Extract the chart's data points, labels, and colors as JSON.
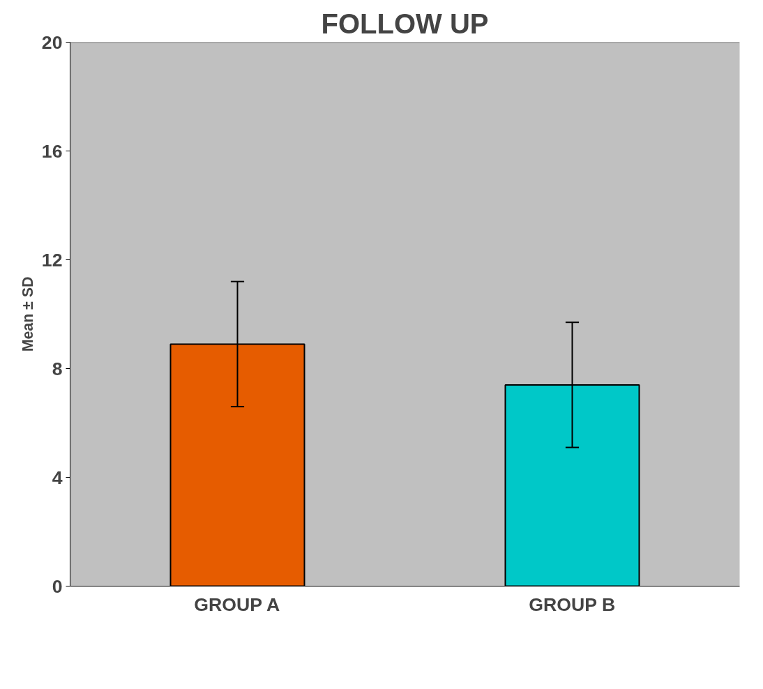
{
  "chart_data": {
    "type": "bar",
    "title": "FOLLOW UP",
    "ylabel": "Mean ± SD",
    "categories": [
      "GROUP A",
      "GROUP B"
    ],
    "values": [
      8.9,
      7.4
    ],
    "errors": [
      2.3,
      2.3
    ],
    "colors": [
      "#e65c00",
      "#00c8c8"
    ],
    "ylim": [
      0,
      20
    ],
    "yticks": [
      0,
      4,
      8,
      12,
      16,
      20
    ],
    "grid": false
  }
}
